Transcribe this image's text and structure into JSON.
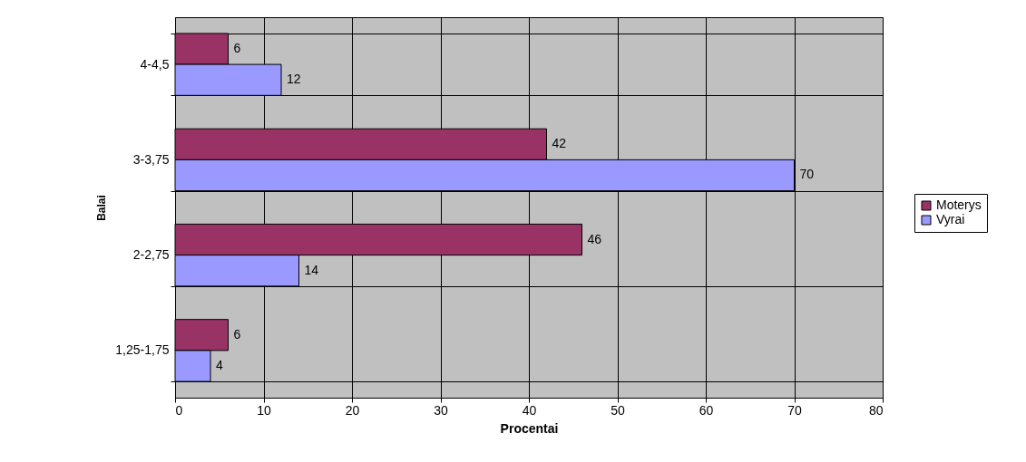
{
  "chart_data": {
    "type": "bar",
    "orientation": "horizontal",
    "xlabel": "Procentai",
    "ylabel": "Balai",
    "categories": [
      "4-4,5",
      "3-3,75",
      "2-2,75",
      "1,25-1,75"
    ],
    "series": [
      {
        "name": "Moterys",
        "color": "#993366",
        "values": [
          6,
          42,
          46,
          6
        ]
      },
      {
        "name": "Vyrai",
        "color": "#9999ff",
        "values": [
          12,
          70,
          14,
          4
        ]
      }
    ],
    "xlim": [
      0,
      80
    ],
    "xticks": [
      0,
      10,
      20,
      30,
      40,
      50,
      60,
      70,
      80
    ],
    "grid": true,
    "legend": "right",
    "data_labels": true
  }
}
